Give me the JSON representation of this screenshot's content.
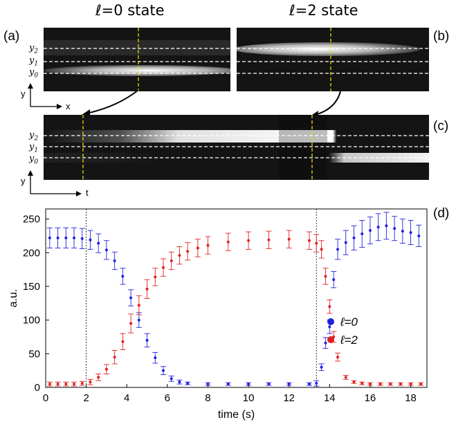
{
  "titles": {
    "left": "ℓ=0 state",
    "right": "ℓ=2 state"
  },
  "panel_labels": {
    "a": "(a)",
    "b": "(b)",
    "c": "(c)",
    "d": "(d)"
  },
  "image_labels": {
    "y2": "y2",
    "y1": "y1",
    "y0": "y0",
    "axis_y": "y",
    "axis_x": "x",
    "axis_t": "t"
  },
  "chart_data": {
    "type": "scatter",
    "xlabel": "time (s)",
    "ylabel": "a.u.",
    "xlim": [
      0,
      18.8
    ],
    "ylim": [
      0,
      265
    ],
    "xticks": [
      0,
      2,
      4,
      6,
      8,
      10,
      12,
      14,
      16,
      18
    ],
    "yticks": [
      0,
      50,
      100,
      150,
      200,
      250
    ],
    "vlines": [
      2.0,
      13.35
    ],
    "legend": {
      "placement": "right-middle",
      "entries": [
        {
          "label": "ℓ=0",
          "color": "#2020e0"
        },
        {
          "label": "ℓ=2",
          "color": "#e02020"
        }
      ]
    },
    "series": [
      {
        "name": "ℓ=0",
        "color": "#2020e0",
        "x": [
          0.2,
          0.6,
          1.0,
          1.4,
          1.8,
          2.2,
          2.6,
          3.0,
          3.4,
          3.8,
          4.2,
          4.6,
          5.0,
          5.4,
          5.8,
          6.2,
          6.6,
          7.0,
          8.0,
          9.0,
          10.0,
          11.0,
          12.0,
          13.0,
          13.35,
          13.6,
          13.8,
          14.0,
          14.2,
          14.4,
          14.8,
          15.2,
          15.6,
          16.0,
          16.4,
          16.8,
          17.2,
          17.6,
          18.0,
          18.4
        ],
        "y": [
          222,
          222,
          222,
          222,
          221,
          219,
          214,
          204,
          188,
          165,
          133,
          100,
          70,
          44,
          25,
          13,
          8,
          6,
          5,
          5,
          5,
          5,
          5,
          5,
          6,
          30,
          66,
          90,
          160,
          205,
          215,
          222,
          228,
          233,
          238,
          240,
          236,
          232,
          230,
          225
        ],
        "err": [
          15,
          15,
          15,
          15,
          15,
          14,
          14,
          14,
          13,
          12,
          12,
          11,
          10,
          8,
          6,
          4,
          3,
          2,
          2,
          2,
          2,
          2,
          2,
          2,
          4,
          5,
          8,
          10,
          12,
          15,
          18,
          18,
          20,
          20,
          20,
          20,
          18,
          18,
          18,
          16
        ]
      },
      {
        "name": "ℓ=2",
        "color": "#e02020",
        "x": [
          0.2,
          0.6,
          1.0,
          1.4,
          1.8,
          2.2,
          2.6,
          3.0,
          3.4,
          3.8,
          4.2,
          4.6,
          5.0,
          5.4,
          5.8,
          6.2,
          6.6,
          7.0,
          7.5,
          8.0,
          9.0,
          10.0,
          11.0,
          12.0,
          13.0,
          13.35,
          13.6,
          13.8,
          14.0,
          14.2,
          14.4,
          14.8,
          15.2,
          15.6,
          16.0,
          16.5,
          17.0,
          17.5,
          18.0,
          18.5
        ],
        "y": [
          5,
          5,
          5,
          5,
          6,
          8,
          15,
          27,
          45,
          68,
          95,
          122,
          146,
          164,
          178,
          188,
          196,
          202,
          207,
          211,
          216,
          218,
          219,
          220,
          218,
          214,
          205,
          165,
          120,
          75,
          45,
          15,
          8,
          6,
          5,
          5,
          5,
          5,
          5,
          5
        ],
        "err": [
          3,
          3,
          3,
          3,
          3,
          4,
          5,
          7,
          10,
          12,
          14,
          14,
          14,
          13,
          13,
          13,
          13,
          13,
          13,
          13,
          13,
          13,
          13,
          13,
          13,
          13,
          13,
          12,
          10,
          8,
          6,
          3,
          2,
          2,
          2,
          2,
          2,
          2,
          2,
          2
        ]
      }
    ]
  }
}
